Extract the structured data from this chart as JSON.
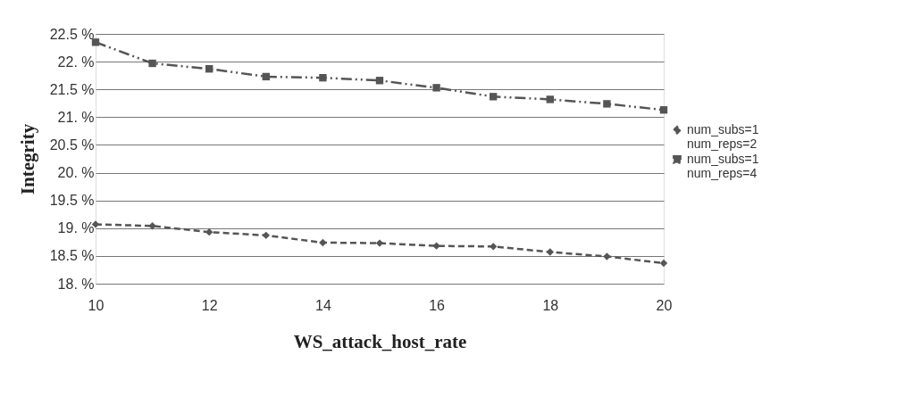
{
  "chart_data": {
    "type": "line",
    "xlabel": "WS_attack_host_rate",
    "ylabel": "Integrity",
    "x": [
      10,
      11,
      12,
      13,
      14,
      15,
      16,
      17,
      18,
      19,
      20
    ],
    "series": [
      {
        "name": "num_subs=1\nnum_reps=2",
        "color": "#555555",
        "marker": "diamond",
        "line_style": "dashed",
        "values": [
          19.07,
          19.04,
          18.93,
          18.87,
          18.74,
          18.73,
          18.68,
          18.67,
          18.57,
          18.49,
          18.37
        ]
      },
      {
        "name": "num_subs=1\nnum_reps=4",
        "color": "#555555",
        "marker": "square",
        "line_style": "dotted",
        "values": [
          22.35,
          21.97,
          21.87,
          21.73,
          21.71,
          21.66,
          21.53,
          21.37,
          21.32,
          21.24,
          21.13
        ]
      }
    ],
    "xlim": [
      10,
      20
    ],
    "xticks": [
      10,
      12,
      14,
      16,
      18,
      20
    ],
    "ylim": [
      18,
      22.5
    ],
    "yticks": [
      {
        "value": 18,
        "label": "18. %"
      },
      {
        "value": 18.5,
        "label": "18.5 %"
      },
      {
        "value": 19,
        "label": "19. %"
      },
      {
        "value": 19.5,
        "label": "19.5 %"
      },
      {
        "value": 20,
        "label": "20. %"
      },
      {
        "value": 20.5,
        "label": "20.5 %"
      },
      {
        "value": 21,
        "label": "21. %"
      },
      {
        "value": 21.5,
        "label": "21.5 %"
      },
      {
        "value": 22,
        "label": "22. %"
      },
      {
        "value": 22.5,
        "label": "22.5 %"
      }
    ],
    "grid": "y",
    "legend": "right"
  }
}
